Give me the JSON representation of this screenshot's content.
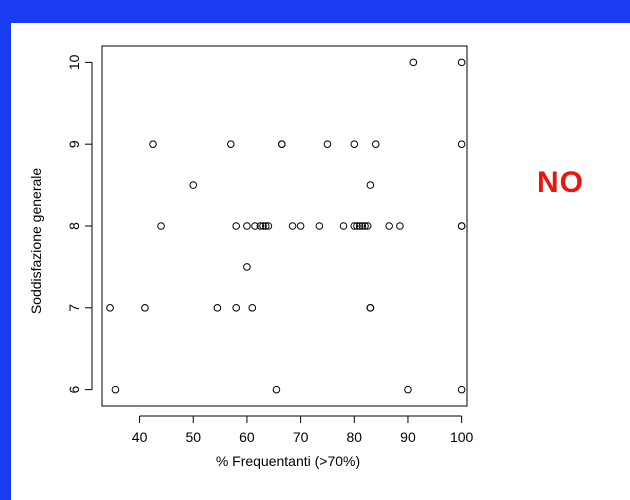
{
  "verdict": {
    "text": "NO",
    "color": "#e8160c"
  },
  "colors": {
    "background_border": "#1a3cf0",
    "slide": "#ffffff",
    "points": "#000000"
  },
  "chart_data": {
    "type": "scatter",
    "title": "",
    "xlabel": "% Frequentanti (>70%)",
    "ylabel": "Soddisfazione generale",
    "xlim": [
      33,
      101
    ],
    "ylim": [
      5.8,
      10.2
    ],
    "xticks": [
      40,
      50,
      60,
      70,
      80,
      90,
      100
    ],
    "yticks": [
      6,
      7,
      8,
      9,
      10
    ],
    "grid": false,
    "legend": "none",
    "y_tick_labels_rotated": true,
    "points": [
      {
        "x": 34.5,
        "y": 7
      },
      {
        "x": 35.5,
        "y": 6
      },
      {
        "x": 41,
        "y": 7
      },
      {
        "x": 42.5,
        "y": 9
      },
      {
        "x": 44,
        "y": 8
      },
      {
        "x": 50,
        "y": 8.5
      },
      {
        "x": 54.5,
        "y": 7
      },
      {
        "x": 57,
        "y": 9
      },
      {
        "x": 58,
        "y": 8
      },
      {
        "x": 58,
        "y": 7
      },
      {
        "x": 60,
        "y": 8
      },
      {
        "x": 60,
        "y": 7.5
      },
      {
        "x": 61,
        "y": 7
      },
      {
        "x": 61.5,
        "y": 8
      },
      {
        "x": 62.5,
        "y": 8
      },
      {
        "x": 63,
        "y": 8
      },
      {
        "x": 63.5,
        "y": 8
      },
      {
        "x": 64,
        "y": 8
      },
      {
        "x": 65.5,
        "y": 6
      },
      {
        "x": 66.5,
        "y": 9
      },
      {
        "x": 66.5,
        "y": 9
      },
      {
        "x": 68.5,
        "y": 8
      },
      {
        "x": 70,
        "y": 8
      },
      {
        "x": 73.5,
        "y": 8
      },
      {
        "x": 75,
        "y": 9
      },
      {
        "x": 78,
        "y": 8
      },
      {
        "x": 80,
        "y": 9
      },
      {
        "x": 80,
        "y": 8
      },
      {
        "x": 80.5,
        "y": 8
      },
      {
        "x": 81,
        "y": 8
      },
      {
        "x": 81.5,
        "y": 8
      },
      {
        "x": 82,
        "y": 8
      },
      {
        "x": 82.5,
        "y": 8
      },
      {
        "x": 83,
        "y": 8.5
      },
      {
        "x": 83,
        "y": 7
      },
      {
        "x": 83,
        "y": 7
      },
      {
        "x": 84,
        "y": 9
      },
      {
        "x": 86.5,
        "y": 8
      },
      {
        "x": 88.5,
        "y": 8
      },
      {
        "x": 90,
        "y": 6
      },
      {
        "x": 91,
        "y": 10
      },
      {
        "x": 100,
        "y": 10
      },
      {
        "x": 100,
        "y": 9
      },
      {
        "x": 100,
        "y": 8
      },
      {
        "x": 100,
        "y": 8
      },
      {
        "x": 100,
        "y": 6
      }
    ]
  }
}
